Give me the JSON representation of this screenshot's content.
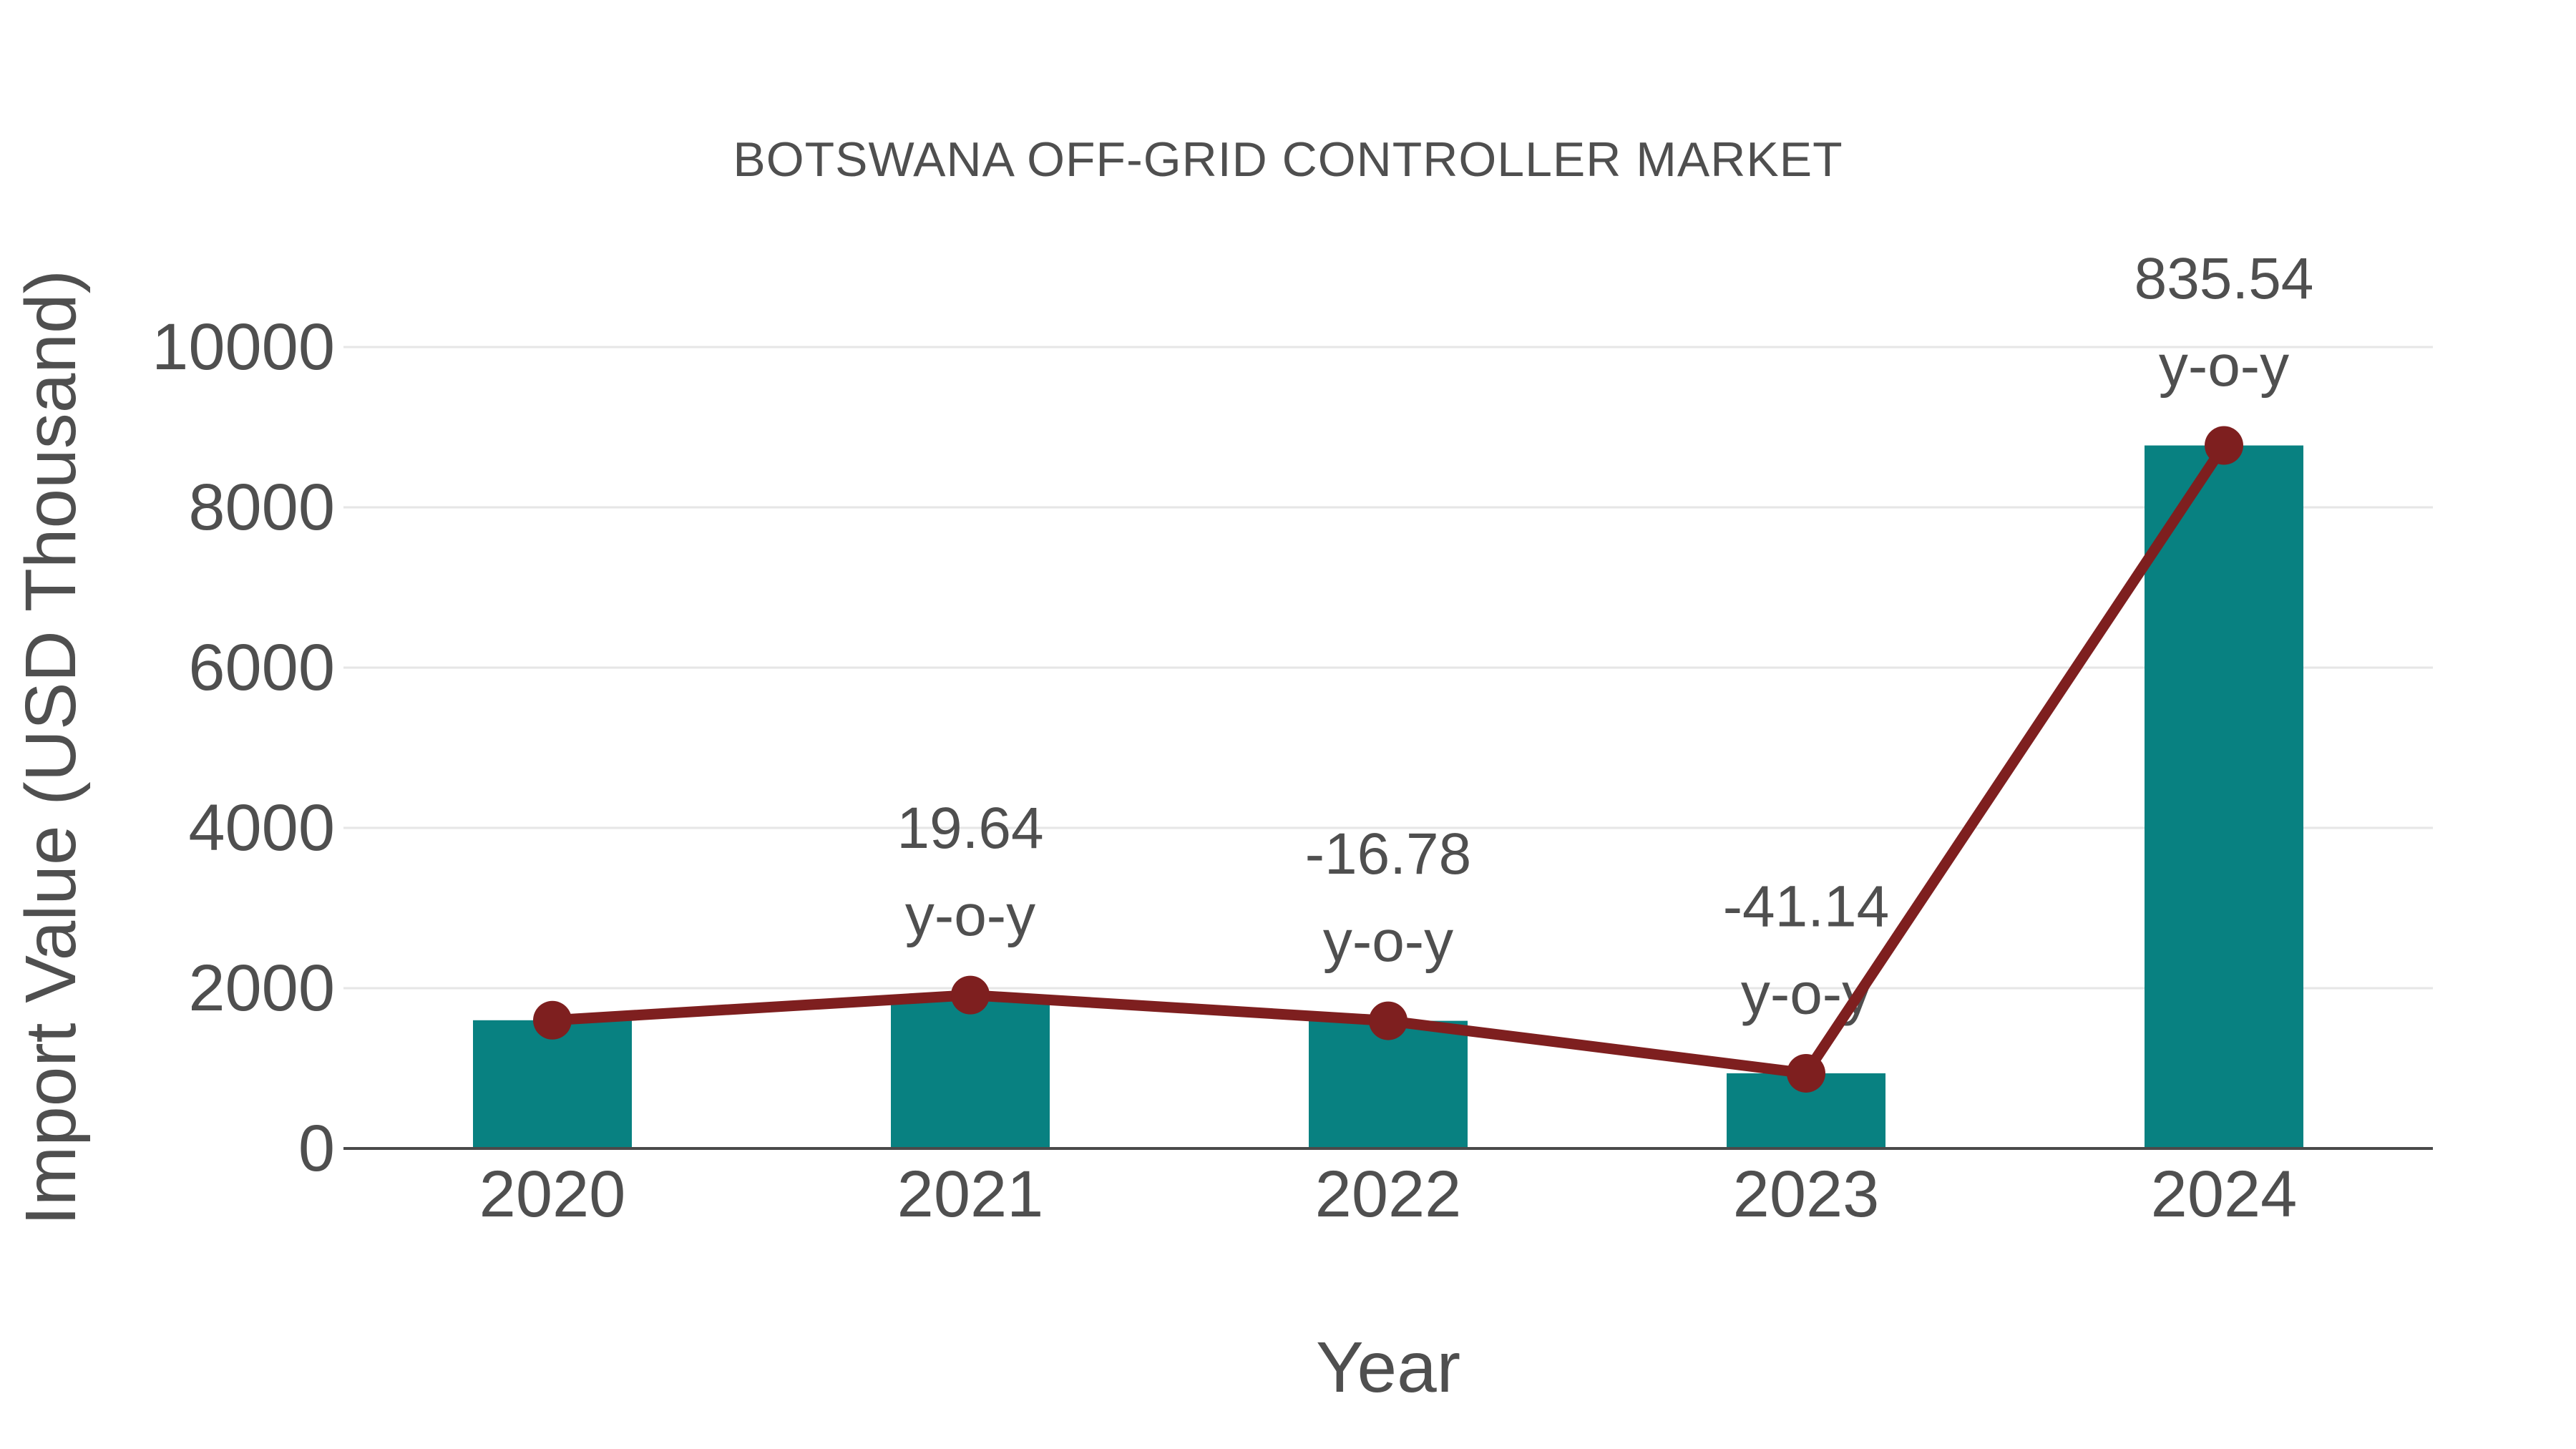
{
  "chart_data": {
    "type": "bar",
    "subtype": "bar-with-line-overlay",
    "title": "BOTSWANA OFF-GRID CONTROLLER MARKET",
    "xlabel": "Year",
    "ylabel": "Import Value (USD Thousand)",
    "categories": [
      "2020",
      "2021",
      "2022",
      "2023",
      "2024"
    ],
    "series": [
      {
        "name": "Import Value bars",
        "type": "bar",
        "values": [
          1600,
          1914,
          1593,
          938,
          8772
        ],
        "color": "#088181"
      },
      {
        "name": "Import Value line",
        "type": "line",
        "values": [
          1600,
          1914,
          1593,
          938,
          8772
        ],
        "color": "#7e1f1f"
      }
    ],
    "yoy_percent": [
      null,
      19.64,
      -16.78,
      -41.14,
      835.54
    ],
    "annotations": [
      {
        "category": "2021",
        "line1": "19.64",
        "line2": "y-o-y"
      },
      {
        "category": "2022",
        "line1": "-16.78",
        "line2": "y-o-y"
      },
      {
        "category": "2023",
        "line1": "-41.14",
        "line2": "y-o-y"
      },
      {
        "category": "2024",
        "line1": "835.54",
        "line2": "y-o-y"
      }
    ],
    "yticks": [
      0,
      2000,
      4000,
      6000,
      8000,
      10000
    ],
    "ylim": [
      0,
      10000
    ],
    "grid": true,
    "legend_position": "none",
    "colors": {
      "bar": "#088181",
      "line": "#7e1f1f",
      "text": "#4f4f4f",
      "gridline": "#e6e6e6",
      "axis": "#4a4a4a",
      "background": "#ffffff"
    }
  }
}
